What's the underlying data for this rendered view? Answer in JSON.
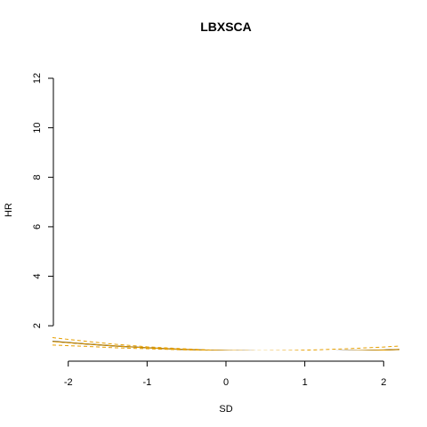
{
  "chart_data": {
    "type": "line",
    "title": "LBXSCA",
    "xlabel": "SD",
    "ylabel": "HR",
    "xlim": [
      -2.2,
      2.2
    ],
    "ylim": [
      1.0,
      12.0
    ],
    "x_ticks": [
      -2,
      -1,
      0,
      1,
      2
    ],
    "x_tick_labels": [
      "-2",
      "-1",
      "0",
      "1",
      "2"
    ],
    "y_ticks": [
      2,
      4,
      6,
      8,
      10,
      12
    ],
    "y_tick_labels": [
      "2",
      "4",
      "6",
      "8",
      "10",
      "12"
    ],
    "grid": false,
    "series": [
      {
        "role": "estimate",
        "color": "#000000",
        "style": "solid",
        "x": [
          -2.2,
          -1.8,
          -1.4,
          -1.0,
          -0.6,
          -0.2,
          0.0,
          0.4,
          0.8,
          1.2,
          1.6,
          2.0,
          2.2
        ],
        "y": [
          1.37,
          1.27,
          1.18,
          1.11,
          1.05,
          1.01,
          1.0,
          0.98,
          0.97,
          0.97,
          0.99,
          1.02,
          1.04
        ]
      },
      {
        "role": "ci-upper",
        "color": "#E69F00",
        "style": "dashed",
        "x": [
          -2.2,
          -1.8,
          -1.4,
          -1.0,
          -0.6,
          -0.2,
          0.0,
          0.4,
          0.8,
          1.2,
          1.6,
          2.0,
          2.2
        ],
        "y": [
          1.52,
          1.38,
          1.25,
          1.15,
          1.08,
          1.02,
          1.0,
          0.99,
          1.0,
          1.03,
          1.08,
          1.14,
          1.18
        ]
      },
      {
        "role": "ci-lower",
        "color": "#E69F00",
        "style": "dashed",
        "x": [
          -2.2,
          -1.8,
          -1.4,
          -1.0,
          -0.6,
          -0.2,
          0.0,
          0.4,
          0.8,
          1.2,
          1.6,
          2.0,
          2.2
        ],
        "y": [
          1.22,
          1.17,
          1.11,
          1.07,
          1.03,
          1.0,
          1.0,
          0.96,
          0.94,
          0.92,
          0.91,
          0.91,
          0.92
        ]
      },
      {
        "role": "fit",
        "color": "#E69F00",
        "style": "solid",
        "x": [
          -2.2,
          -1.8,
          -1.4,
          -1.0,
          -0.6,
          -0.2,
          0.0,
          0.4,
          0.8,
          1.2,
          1.6,
          2.0,
          2.2
        ],
        "y": [
          1.36,
          1.27,
          1.18,
          1.11,
          1.05,
          1.01,
          1.0,
          0.98,
          0.97,
          0.97,
          0.99,
          1.02,
          1.04
        ]
      }
    ]
  }
}
